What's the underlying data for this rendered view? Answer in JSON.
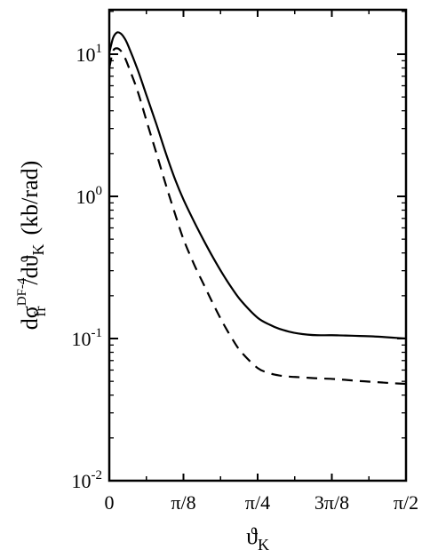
{
  "chart_data": {
    "type": "line",
    "title": "",
    "xlabel": {
      "main": "ϑ",
      "sub": "K"
    },
    "ylabel": {
      "prefix": "dσ",
      "sup": "DF-4",
      "sub": "fr",
      "middle": "/dϑ",
      "sub2": "K",
      "unit": "(kb/rad)"
    },
    "x_scale": "linear",
    "y_scale": "log",
    "xlim": [
      0,
      1.5708
    ],
    "ylim": [
      0.01,
      50
    ],
    "x_ticks": [
      {
        "value": 0,
        "label": "0"
      },
      {
        "value": 0.3927,
        "label": "π/8"
      },
      {
        "value": 0.7854,
        "label": "π/4"
      },
      {
        "value": 1.1781,
        "label": "3π/8"
      },
      {
        "value": 1.5708,
        "label": "π/2"
      }
    ],
    "y_ticks": [
      {
        "value": 10,
        "base": "10",
        "exp": "1"
      },
      {
        "value": 1,
        "base": "10",
        "exp": "0"
      },
      {
        "value": 0.1,
        "base": "10",
        "exp": "-1"
      },
      {
        "value": 0.01,
        "base": "10",
        "exp": "-2"
      }
    ],
    "grid": false,
    "legend": "none",
    "series": [
      {
        "style": "solid",
        "color": "#000000",
        "x": [
          0.0,
          0.02,
          0.04,
          0.06,
          0.08,
          0.1,
          0.15,
          0.2,
          0.25,
          0.3,
          0.35,
          0.3927,
          0.45,
          0.5,
          0.55,
          0.6,
          0.65,
          0.7,
          0.7854,
          0.85,
          0.9,
          0.95,
          1.0,
          1.05,
          1.1,
          1.1781,
          1.25,
          1.3,
          1.35,
          1.4,
          1.45,
          1.5,
          1.5708
        ],
        "y": [
          10.2,
          13.0,
          14.2,
          14.0,
          13.0,
          11.5,
          7.8,
          5.0,
          3.2,
          2.0,
          1.3,
          0.95,
          0.66,
          0.49,
          0.37,
          0.285,
          0.225,
          0.183,
          0.14,
          0.125,
          0.117,
          0.112,
          0.1085,
          0.1065,
          0.1055,
          0.1055,
          0.105,
          0.1045,
          0.104,
          0.1035,
          0.1025,
          0.1015,
          0.1
        ]
      },
      {
        "style": "dashed",
        "color": "#000000",
        "x": [
          0.0,
          0.02,
          0.04,
          0.06,
          0.08,
          0.1,
          0.15,
          0.2,
          0.25,
          0.3,
          0.35,
          0.3927,
          0.45,
          0.5,
          0.55,
          0.6,
          0.65,
          0.7,
          0.7854,
          0.85,
          0.9,
          0.95,
          1.0,
          1.05,
          1.1,
          1.1781,
          1.25,
          1.3,
          1.35,
          1.4,
          1.45,
          1.5,
          1.5708
        ],
        "y": [
          8.0,
          10.5,
          11.0,
          10.6,
          9.6,
          8.3,
          5.5,
          3.3,
          2.0,
          1.2,
          0.74,
          0.5,
          0.33,
          0.24,
          0.175,
          0.13,
          0.1,
          0.08,
          0.062,
          0.057,
          0.055,
          0.054,
          0.0535,
          0.053,
          0.0525,
          0.052,
          0.0512,
          0.0505,
          0.05,
          0.0495,
          0.049,
          0.0485,
          0.048
        ]
      }
    ]
  }
}
